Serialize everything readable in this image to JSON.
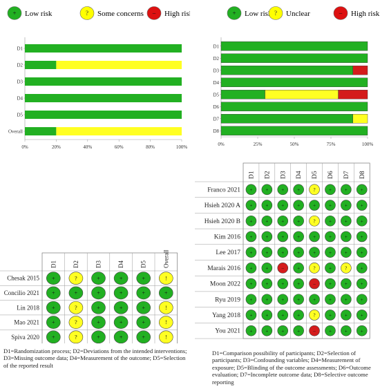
{
  "colors": {
    "low": "#1a9e1a",
    "low_fill": "#22b022",
    "some": "#ffff22",
    "high": "#d41c1c",
    "legend_low": "#22b022",
    "legend_some": "#ffff00",
    "legend_high": "#dd1111"
  },
  "chart_data": [
    {
      "type": "bar",
      "orientation": "horizontal-stacked",
      "legend": [
        {
          "key": "low",
          "symbol": "+",
          "label": "Low risk"
        },
        {
          "key": "some",
          "symbol": "?",
          "label": "Some concerns"
        },
        {
          "key": "high",
          "symbol": "–",
          "label": "High risk"
        }
      ],
      "categories": [
        "D1",
        "D2",
        "D3",
        "D4",
        "D5",
        "Overall"
      ],
      "series": [
        {
          "key": "low",
          "values": [
            100,
            20,
            100,
            100,
            100,
            20
          ]
        },
        {
          "key": "some",
          "values": [
            0,
            80,
            0,
            0,
            0,
            80
          ]
        },
        {
          "key": "high",
          "values": [
            0,
            0,
            0,
            0,
            0,
            0
          ]
        }
      ],
      "xticks": [
        "0%",
        "20%",
        "40%",
        "60%",
        "80%",
        "100%"
      ],
      "xlim": [
        0,
        100
      ]
    },
    {
      "type": "bar",
      "orientation": "horizontal-stacked",
      "legend": [
        {
          "key": "low",
          "symbol": "+",
          "label": "Low risk"
        },
        {
          "key": "some",
          "symbol": "?",
          "label": "Unclear"
        },
        {
          "key": "high",
          "symbol": "–",
          "label": "High risk"
        }
      ],
      "categories": [
        "D1",
        "D2",
        "D3",
        "D4",
        "D5",
        "D6",
        "D7",
        "D8"
      ],
      "series": [
        {
          "key": "low",
          "values": [
            100,
            100,
            90,
            100,
            30,
            100,
            90,
            100
          ]
        },
        {
          "key": "some",
          "values": [
            0,
            0,
            0,
            0,
            50,
            0,
            10,
            0
          ]
        },
        {
          "key": "high",
          "values": [
            0,
            0,
            10,
            0,
            20,
            0,
            0,
            0
          ]
        }
      ],
      "xticks": [
        "0%",
        "25%",
        "50%",
        "75%",
        "100%"
      ],
      "xlim": [
        0,
        100
      ]
    },
    {
      "type": "table",
      "columns": [
        "D1",
        "D2",
        "D3",
        "D4",
        "D5",
        "Overall"
      ],
      "rows": [
        {
          "study": "Chesak 2015",
          "cells": [
            "+",
            "?",
            "+",
            "+",
            "+",
            "!"
          ]
        },
        {
          "study": "Concilio 2021",
          "cells": [
            "+",
            "+",
            "+",
            "+",
            "+",
            "+"
          ]
        },
        {
          "study": "Lin 2018",
          "cells": [
            "+",
            "?",
            "+",
            "+",
            "+",
            "!"
          ]
        },
        {
          "study": "Mao 2021",
          "cells": [
            "+",
            "?",
            "+",
            "+",
            "+",
            "!"
          ]
        },
        {
          "study": "Spiva 2020",
          "cells": [
            "+",
            "?",
            "+",
            "+",
            "+",
            "!"
          ]
        }
      ],
      "footnote": "D1=Randomization process; D2=Deviations from the intended interventions; D3=Missing outcome data; D4=Measurement of the outcome; D5=Selection of the reported result"
    },
    {
      "type": "table",
      "columns": [
        "D1",
        "D2",
        "D3",
        "D4",
        "D5",
        "D6",
        "D7",
        "D8"
      ],
      "rows": [
        {
          "study": "Franco 2021",
          "cells": [
            "+",
            "+",
            "+",
            "+",
            "?",
            "+",
            "+",
            "+"
          ]
        },
        {
          "study": "Hsieh 2020 A",
          "cells": [
            "+",
            "+",
            "+",
            "+",
            "+",
            "+",
            "+",
            "+"
          ]
        },
        {
          "study": "Hsieh 2020 B",
          "cells": [
            "+",
            "+",
            "+",
            "+",
            "?",
            "+",
            "+",
            "+"
          ]
        },
        {
          "study": "Kim 2016",
          "cells": [
            "+",
            "+",
            "+",
            "+",
            "+",
            "+",
            "+",
            "+"
          ]
        },
        {
          "study": "Lee 2017",
          "cells": [
            "+",
            "+",
            "+",
            "+",
            "+",
            "+",
            "+",
            "+"
          ]
        },
        {
          "study": "Marais 2016",
          "cells": [
            "+",
            "+",
            "–",
            "+",
            "?",
            "+",
            "?",
            "+"
          ]
        },
        {
          "study": "Moon 2022",
          "cells": [
            "+",
            "+",
            "+",
            "+",
            "–",
            "+",
            "+",
            "+"
          ]
        },
        {
          "study": "Ryu 2019",
          "cells": [
            "+",
            "+",
            "+",
            "+",
            "+",
            "+",
            "+",
            "+"
          ]
        },
        {
          "study": "Yang 2018",
          "cells": [
            "+",
            "+",
            "+",
            "+",
            "?",
            "+",
            "+",
            "+"
          ]
        },
        {
          "study": "You 2021",
          "cells": [
            "+",
            "+",
            "+",
            "+",
            "–",
            "+",
            "+",
            "+"
          ]
        }
      ],
      "footnote": "D1=Comparison possibility of participants; D2=Selection of participants; D3=Confounding variables; D4=Measurement of exposure; D5=Blinding of the outcome assessments; D6=Outcome evaluation; D7=Incomplete outcome data; D8=Selective outcome reporting"
    }
  ]
}
